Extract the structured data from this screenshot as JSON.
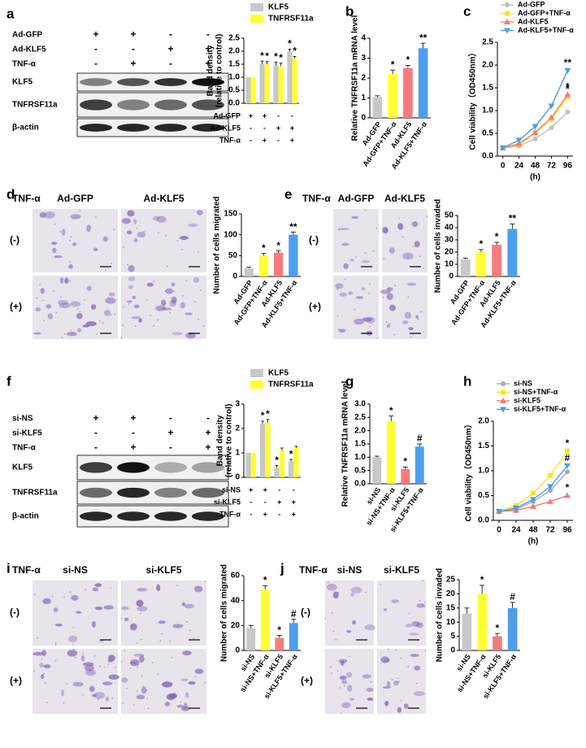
{
  "figure": {
    "blots": [
      {
        "rows": [
          {
            "name": "Ad-GFP",
            "signs": [
              "+",
              "+",
              "-",
              "-"
            ]
          },
          {
            "name": "Ad-KLF5",
            "signs": [
              "-",
              "-",
              "+",
              "+"
            ]
          },
          {
            "name": "TNF-α",
            "signs": [
              "-",
              "+",
              "-",
              "+"
            ]
          }
        ],
        "bands": [
          "KLF5",
          "TNFRSF11a",
          "β-actin"
        ]
      },
      {
        "rows": [
          {
            "name": "si-NS",
            "signs": [
              "+",
              "+",
              "-",
              "-"
            ]
          },
          {
            "name": "si-KLF5",
            "signs": [
              "-",
              "-",
              "+",
              "+"
            ]
          },
          {
            "name": "TNF-α",
            "signs": [
              "-",
              "+",
              "-",
              "+"
            ]
          }
        ],
        "bands": [
          "KLF5",
          "TNFRSF11a",
          "β-actin"
        ]
      }
    ],
    "micrographs": [
      {
        "treatment": "TNF-α",
        "columns": [
          "Ad-GFP",
          "Ad-KLF5"
        ],
        "rows": [
          "(-)",
          "(+)"
        ]
      },
      {
        "treatment": "TNF-α",
        "columns": [
          "Ad-GFP",
          "Ad-KLF5"
        ],
        "rows": [
          "(-)",
          "(+)"
        ]
      },
      {
        "treatment": "TNF-α",
        "columns": [
          "si-NS",
          "si-KLF5"
        ],
        "rows": [
          "(-)",
          "(+)"
        ]
      },
      {
        "treatment": "TNF-α",
        "columns": [
          "si-NS",
          "si-KLF5"
        ],
        "rows": [
          "(-)",
          "(+)"
        ]
      }
    ]
  },
  "chart_data": [
    {
      "type": "grouped-bar",
      "label": "a",
      "ylabel": [
        "Band density",
        "(relative to control)"
      ],
      "ylim": [
        0,
        2.5
      ],
      "yticks": [
        {
          "value": 0,
          "label": "0.0"
        },
        0.5,
        {
          "value": 1,
          "label": "1.0"
        },
        1.5,
        {
          "value": 2,
          "label": "2.0"
        },
        2.5
      ],
      "series": [
        {
          "name": "KLF5",
          "color": "#c8c8c8",
          "values": [
            1,
            1.5,
            1.45,
            1.98
          ],
          "errors": [
            0,
            0.12,
            0.13,
            0.1
          ],
          "annotations": [
            null,
            "*",
            "*",
            "*"
          ]
        },
        {
          "name": "TNFRSF11a",
          "color": "#ffff33",
          "values": [
            1,
            1.5,
            1.42,
            1.72
          ],
          "errors": [
            0,
            0.1,
            0.12,
            0.08
          ],
          "annotations": [
            null,
            "*",
            "*",
            "*"
          ]
        }
      ],
      "conditions": [
        {
          "name": "Ad-GFP",
          "signs": [
            "+",
            "+",
            "-",
            "-"
          ]
        },
        {
          "name": "Ad-KLF5",
          "signs": [
            "-",
            "-",
            "+",
            "+"
          ]
        },
        {
          "name": "TNF-α",
          "signs": [
            "-",
            "+",
            "-",
            "+"
          ]
        }
      ]
    },
    {
      "type": "bar",
      "label": "b",
      "ylabel": [
        "Relative TNFRSF11a mRNA level"
      ],
      "ylim": [
        0,
        4
      ],
      "yticks": [
        0,
        1,
        2,
        3,
        4
      ],
      "categories": [
        "Ad-GFP",
        "Ad-GFP+TNF-α",
        "Ad-KLF5",
        "Ad-KLF5+TNF-α"
      ],
      "values": [
        1.05,
        2.2,
        2.5,
        3.5
      ],
      "errors": [
        0.06,
        0.2,
        0.13,
        0.25
      ],
      "colors": [
        "#c8c8c8",
        "#ffff33",
        "#f57c7c",
        "#4d9fee"
      ],
      "annotations": [
        null,
        "*",
        "*",
        "**"
      ]
    },
    {
      "type": "line",
      "label": "c",
      "ylabel": [
        "Cell viability（OD450nm）"
      ],
      "xlabel": "(h)",
      "x": [
        0,
        24,
        48,
        72,
        96
      ],
      "xlim": [
        -8,
        104
      ],
      "xticks": [
        0,
        24,
        48,
        72,
        96
      ],
      "ylim": [
        0,
        2.5
      ],
      "yticks": [
        {
          "value": 0,
          "label": "0.0"
        },
        0.5,
        {
          "value": 1,
          "label": "1.0"
        },
        1.5,
        {
          "value": 2,
          "label": "2.0"
        },
        2.5
      ],
      "series": [
        {
          "name": "Ad-GFP",
          "color": "#c0c0c0",
          "marker": "circle",
          "values": [
            0.18,
            0.22,
            0.38,
            0.62,
            0.97
          ],
          "annotation": null
        },
        {
          "name": "Ad-GFP+TNF-α",
          "color": "#f5e61e",
          "marker": "square",
          "values": [
            0.18,
            0.25,
            0.5,
            0.8,
            1.3
          ],
          "annotation": "*"
        },
        {
          "name": "Ad-KLF5",
          "color": "#f47a7a",
          "marker": "triangle",
          "values": [
            0.18,
            0.27,
            0.52,
            0.85,
            1.35
          ],
          "annotation": "*"
        },
        {
          "name": "Ad-KLF5+TNF-α",
          "color": "#4b9fe8",
          "marker": "triangle-down",
          "values": [
            0.18,
            0.35,
            0.65,
            1.1,
            1.88
          ],
          "annotation": "**"
        }
      ]
    },
    {
      "type": "bar",
      "label": "d",
      "ylabel": [
        "Number of cells migrated"
      ],
      "ylim": [
        0,
        150
      ],
      "yticks": [
        0,
        50,
        100,
        150
      ],
      "categories": [
        "Ad-GFP",
        "Ad-GFP+TNF-α",
        "Ad-KLF5",
        "Ad-KLF5+TNF-α"
      ],
      "values": [
        20,
        50,
        57,
        100
      ],
      "errors": [
        2,
        5,
        4,
        6
      ],
      "colors": [
        "#c8c8c8",
        "#ffff33",
        "#f57c7c",
        "#4d9fee"
      ],
      "annotations": [
        null,
        "*",
        "*",
        "**"
      ]
    },
    {
      "type": "bar",
      "label": "e",
      "ylabel": [
        "Number of cells invaded"
      ],
      "ylim": [
        0,
        50
      ],
      "yticks": [
        0,
        10,
        20,
        30,
        40,
        50
      ],
      "categories": [
        "Ad-GFP",
        "Ad-GFP+TNF-α",
        "Ad-KLF5",
        "Ad-KLF5+TNF-α"
      ],
      "values": [
        14,
        20,
        26,
        39
      ],
      "errors": [
        1,
        2,
        2,
        4
      ],
      "colors": [
        "#c8c8c8",
        "#ffff33",
        "#f57c7c",
        "#4d9fee"
      ],
      "annotations": [
        null,
        "*",
        "*",
        "**"
      ]
    },
    {
      "type": "grouped-bar",
      "label": "f",
      "ylabel": [
        "Band density",
        "(relative to control)"
      ],
      "ylim": [
        0,
        3
      ],
      "yticks": [
        0,
        1,
        2,
        3
      ],
      "series": [
        {
          "name": "KLF5",
          "color": "#c8c8c8",
          "values": [
            1,
            2.2,
            0.4,
            0.65
          ],
          "errors": [
            0,
            0.1,
            0.08,
            0.08
          ],
          "annotations": [
            null,
            "*",
            "*",
            "*"
          ]
        },
        {
          "name": "TNFRSF11a",
          "color": "#ffff33",
          "values": [
            1,
            2.25,
            1.1,
            1.2
          ],
          "errors": [
            0,
            0.12,
            0.1,
            0.07
          ],
          "annotations": [
            null,
            "*",
            null,
            null
          ]
        }
      ],
      "conditions": [
        {
          "name": "si-NS",
          "signs": [
            "+",
            "+",
            "-",
            "-"
          ]
        },
        {
          "name": "si-KLF5",
          "signs": [
            "-",
            "-",
            "+",
            "+"
          ]
        },
        {
          "name": "TNF-α",
          "signs": [
            "-",
            "+",
            "-",
            "+"
          ]
        }
      ]
    },
    {
      "type": "bar",
      "label": "g",
      "ylabel": [
        "Relative TNFRSF11a mRNA level"
      ],
      "ylim": [
        0,
        3
      ],
      "yticks": [
        {
          "value": 0,
          "label": "0.0"
        },
        0.5,
        {
          "value": 1,
          "label": "1.0"
        },
        1.5,
        {
          "value": 2,
          "label": "2.0"
        },
        2.5,
        {
          "value": 3,
          "label": "3.0"
        }
      ],
      "categories": [
        "si-NS",
        "si-NS+TNF-α",
        "si-KLF5",
        "si-KLF5+TNF-α"
      ],
      "values": [
        1.0,
        2.35,
        0.55,
        1.4
      ],
      "errors": [
        0.04,
        0.2,
        0.08,
        0.1
      ],
      "colors": [
        "#c8c8c8",
        "#ffff33",
        "#f57c7c",
        "#4d9fee"
      ],
      "annotations": [
        null,
        "*",
        "*",
        "#"
      ]
    },
    {
      "type": "line",
      "label": "h",
      "ylabel": [
        "Cell viability（OD450nm）"
      ],
      "xlabel": "(h)",
      "x": [
        0,
        24,
        48,
        72,
        96
      ],
      "xlim": [
        -8,
        104
      ],
      "xticks": [
        0,
        24,
        48,
        72,
        96
      ],
      "ylim": [
        0,
        2
      ],
      "yticks": [
        {
          "value": 0,
          "label": "0.0"
        },
        0.5,
        {
          "value": 1,
          "label": "1.0"
        },
        1.5,
        {
          "value": 2,
          "label": "2.0"
        }
      ],
      "series": [
        {
          "name": "si-NS",
          "color": "#a8a8b8",
          "marker": "circle",
          "values": [
            0.18,
            0.22,
            0.38,
            0.6,
            0.98
          ],
          "annotation": null
        },
        {
          "name": "si-NS+TNF-α",
          "color": "#f5e61e",
          "marker": "square",
          "values": [
            0.18,
            0.3,
            0.55,
            0.9,
            1.4
          ],
          "annotation": "*"
        },
        {
          "name": "si-KLF5",
          "color": "#f47a7a",
          "marker": "triangle",
          "values": [
            0.18,
            0.2,
            0.28,
            0.38,
            0.5
          ],
          "annotation": "*"
        },
        {
          "name": "si-KLF5+TNF-α",
          "color": "#4b9fe8",
          "marker": "triangle-down",
          "values": [
            0.18,
            0.25,
            0.42,
            0.68,
            1.1
          ],
          "annotation": "#"
        }
      ]
    },
    {
      "type": "bar",
      "label": "i",
      "ylabel": [
        "Number of cells migrated"
      ],
      "ylim": [
        0,
        60
      ],
      "yticks": [
        0,
        20,
        40,
        60
      ],
      "categories": [
        "si-NS",
        "si-NS+TNF-α",
        "si-KLF5",
        "si-KLF5+TNF-α"
      ],
      "values": [
        18,
        49,
        10,
        22
      ],
      "errors": [
        2,
        3,
        2,
        3
      ],
      "colors": [
        "#c8c8c8",
        "#ffff33",
        "#f57c7c",
        "#4d9fee"
      ],
      "annotations": [
        null,
        "*",
        "*",
        "#"
      ]
    },
    {
      "type": "bar",
      "label": "j",
      "ylabel": [
        "Number of cells invaded"
      ],
      "ylim": [
        0,
        25
      ],
      "yticks": [
        0,
        5,
        10,
        15,
        20,
        25
      ],
      "categories": [
        "si-NS",
        "si-NS+TNF-α",
        "si-KLF5",
        "si-KLF5+TNF-α"
      ],
      "values": [
        13,
        20,
        5,
        15
      ],
      "errors": [
        2,
        3,
        1,
        2
      ],
      "colors": [
        "#c8c8c8",
        "#ffff33",
        "#f57c7c",
        "#4d9fee"
      ],
      "annotations": [
        null,
        "*",
        "*",
        "#"
      ]
    }
  ]
}
